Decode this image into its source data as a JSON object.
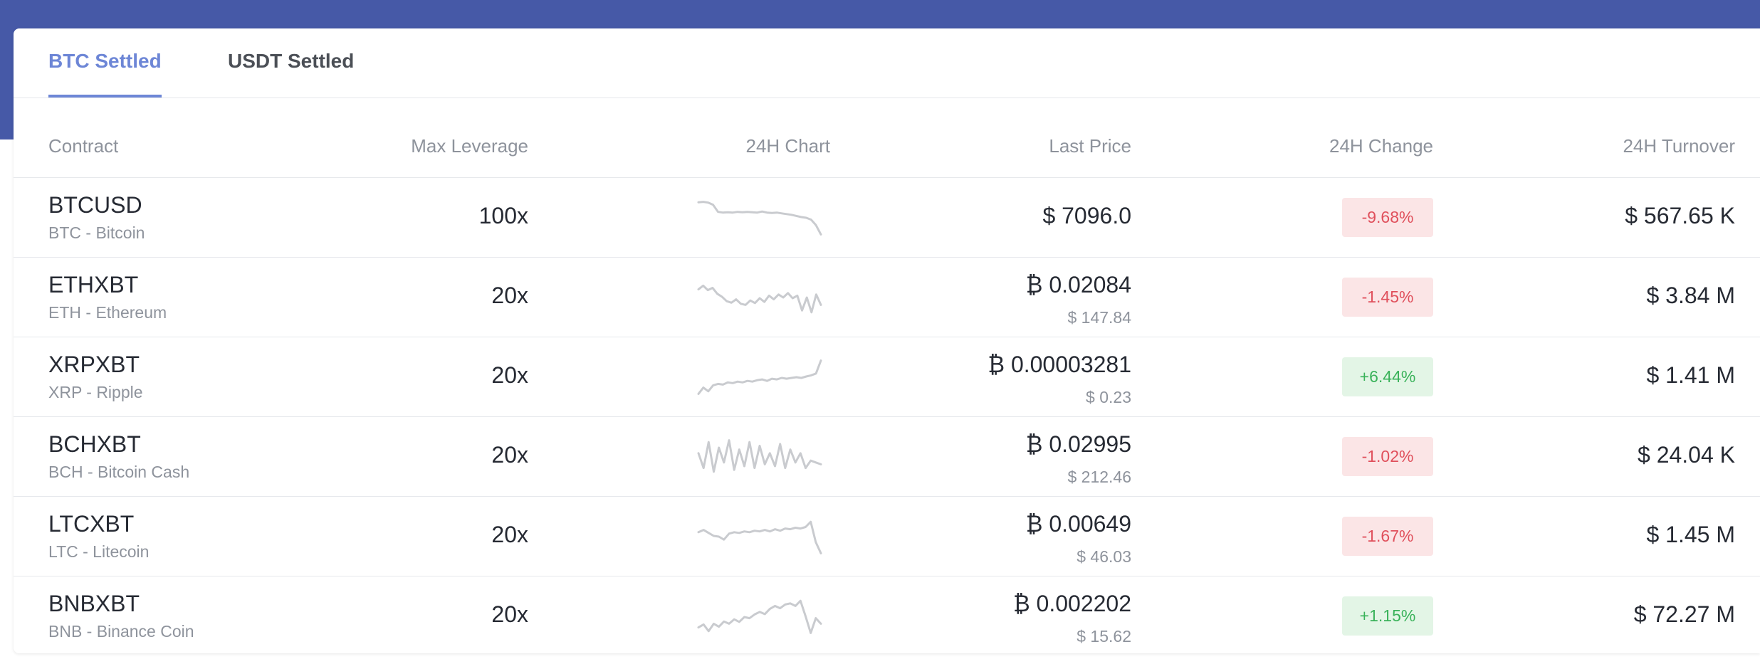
{
  "tabs": [
    {
      "label": "BTC Settled",
      "active": true
    },
    {
      "label": "USDT Settled",
      "active": false
    }
  ],
  "columns": {
    "contract": "Contract",
    "max_leverage": "Max Leverage",
    "chart": "24H Chart",
    "last_price": "Last Price",
    "change": "24H Change",
    "turnover": "24H Turnover"
  },
  "colors": {
    "topbar": "#4659a7",
    "accent": "#6d86d6",
    "negative": "#e0505c",
    "negative_bg": "#fbe5e6",
    "positive": "#3ab25a",
    "positive_bg": "#e3f5e6",
    "sparkline": "#c9cbcf"
  },
  "rows": [
    {
      "symbol": "BTCUSD",
      "name": "BTC - Bitcoin",
      "leverage": "100x",
      "price": "$ 7096.0",
      "usd": "",
      "change": "-9.68%",
      "direction": "negative",
      "turnover": "$ 567.65 K",
      "spark": [
        0.92,
        0.93,
        0.91,
        0.85,
        0.66,
        0.64,
        0.65,
        0.64,
        0.66,
        0.65,
        0.66,
        0.65,
        0.64,
        0.67,
        0.64,
        0.63,
        0.64,
        0.62,
        0.6,
        0.58,
        0.55,
        0.52,
        0.5,
        0.45,
        0.3,
        0.05
      ]
    },
    {
      "symbol": "ETHXBT",
      "name": "ETH - Ethereum",
      "leverage": "20x",
      "price": "₿ 0.02084",
      "usd": "$ 147.84",
      "change": "-1.45%",
      "direction": "negative",
      "turnover": "$ 3.84 M",
      "spark": [
        0.72,
        0.82,
        0.7,
        0.76,
        0.6,
        0.52,
        0.4,
        0.36,
        0.45,
        0.33,
        0.3,
        0.42,
        0.35,
        0.48,
        0.38,
        0.55,
        0.45,
        0.58,
        0.5,
        0.62,
        0.48,
        0.55,
        0.15,
        0.5,
        0.1,
        0.58,
        0.3
      ]
    },
    {
      "symbol": "XRPXBT",
      "name": "XRP - Ripple",
      "leverage": "20x",
      "price": "₿ 0.00003281",
      "usd": "$ 0.23",
      "change": "+6.44%",
      "direction": "positive",
      "turnover": "$ 1.41 M",
      "spark": [
        0.05,
        0.22,
        0.12,
        0.28,
        0.32,
        0.3,
        0.36,
        0.34,
        0.38,
        0.36,
        0.4,
        0.38,
        0.42,
        0.44,
        0.4,
        0.46,
        0.44,
        0.48,
        0.46,
        0.48,
        0.5,
        0.48,
        0.52,
        0.55,
        0.6,
        0.95
      ]
    },
    {
      "symbol": "BCHXBT",
      "name": "BCH - Bitcoin Cash",
      "leverage": "20x",
      "price": "₿ 0.02995",
      "usd": "$ 212.46",
      "change": "-1.02%",
      "direction": "negative",
      "turnover": "$ 24.04 K",
      "spark": [
        0.6,
        0.2,
        0.9,
        0.1,
        0.75,
        0.35,
        0.95,
        0.15,
        0.7,
        0.25,
        0.9,
        0.2,
        0.8,
        0.3,
        0.6,
        0.25,
        0.85,
        0.2,
        0.7,
        0.35,
        0.6,
        0.2,
        0.4,
        0.35,
        0.3
      ]
    },
    {
      "symbol": "LTCXBT",
      "name": "LTC - Litecoin",
      "leverage": "20x",
      "price": "₿ 0.00649",
      "usd": "$ 46.03",
      "change": "-1.67%",
      "direction": "negative",
      "turnover": "$ 1.45 M",
      "spark": [
        0.62,
        0.68,
        0.6,
        0.52,
        0.5,
        0.42,
        0.58,
        0.62,
        0.6,
        0.64,
        0.62,
        0.66,
        0.64,
        0.68,
        0.64,
        0.7,
        0.66,
        0.72,
        0.7,
        0.74,
        0.72,
        0.76,
        0.9,
        0.35,
        0.05
      ]
    },
    {
      "symbol": "BNBXBT",
      "name": "BNB - Binance Coin",
      "leverage": "20x",
      "price": "₿ 0.002202",
      "usd": "$ 15.62",
      "change": "+1.15%",
      "direction": "positive",
      "turnover": "$ 72.27 M",
      "spark": [
        0.2,
        0.28,
        0.1,
        0.3,
        0.22,
        0.36,
        0.3,
        0.42,
        0.35,
        0.48,
        0.45,
        0.55,
        0.62,
        0.56,
        0.7,
        0.78,
        0.72,
        0.82,
        0.85,
        0.78,
        0.92,
        0.5,
        0.05,
        0.45,
        0.3
      ]
    }
  ]
}
